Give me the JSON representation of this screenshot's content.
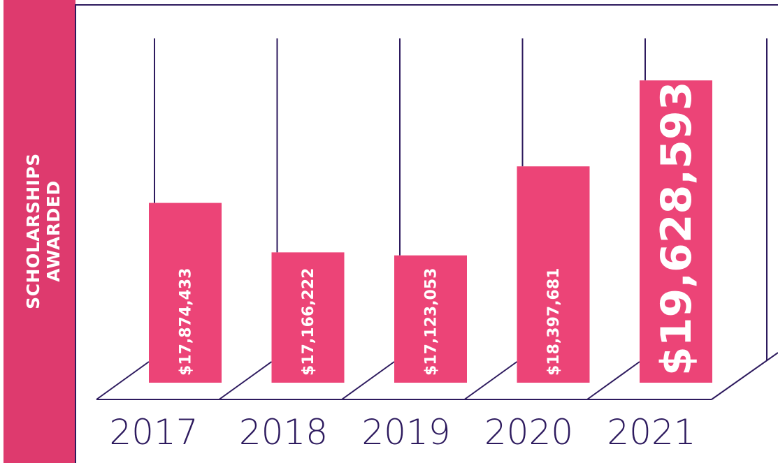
{
  "chart_data": {
    "type": "bar",
    "title": "SCHOLARSHIPS AWARDED",
    "categories": [
      "2017",
      "2018",
      "2019",
      "2020",
      "2021"
    ],
    "values": [
      17874433,
      17166222,
      17123053,
      18397681,
      19628593
    ],
    "value_labels": [
      "$17,874,433",
      "$17,166,222",
      "$17,123,053",
      "$18,397,681",
      "$19,628,593"
    ],
    "color": "#ec4477",
    "ylim": [
      15300000,
      20000000
    ]
  }
}
